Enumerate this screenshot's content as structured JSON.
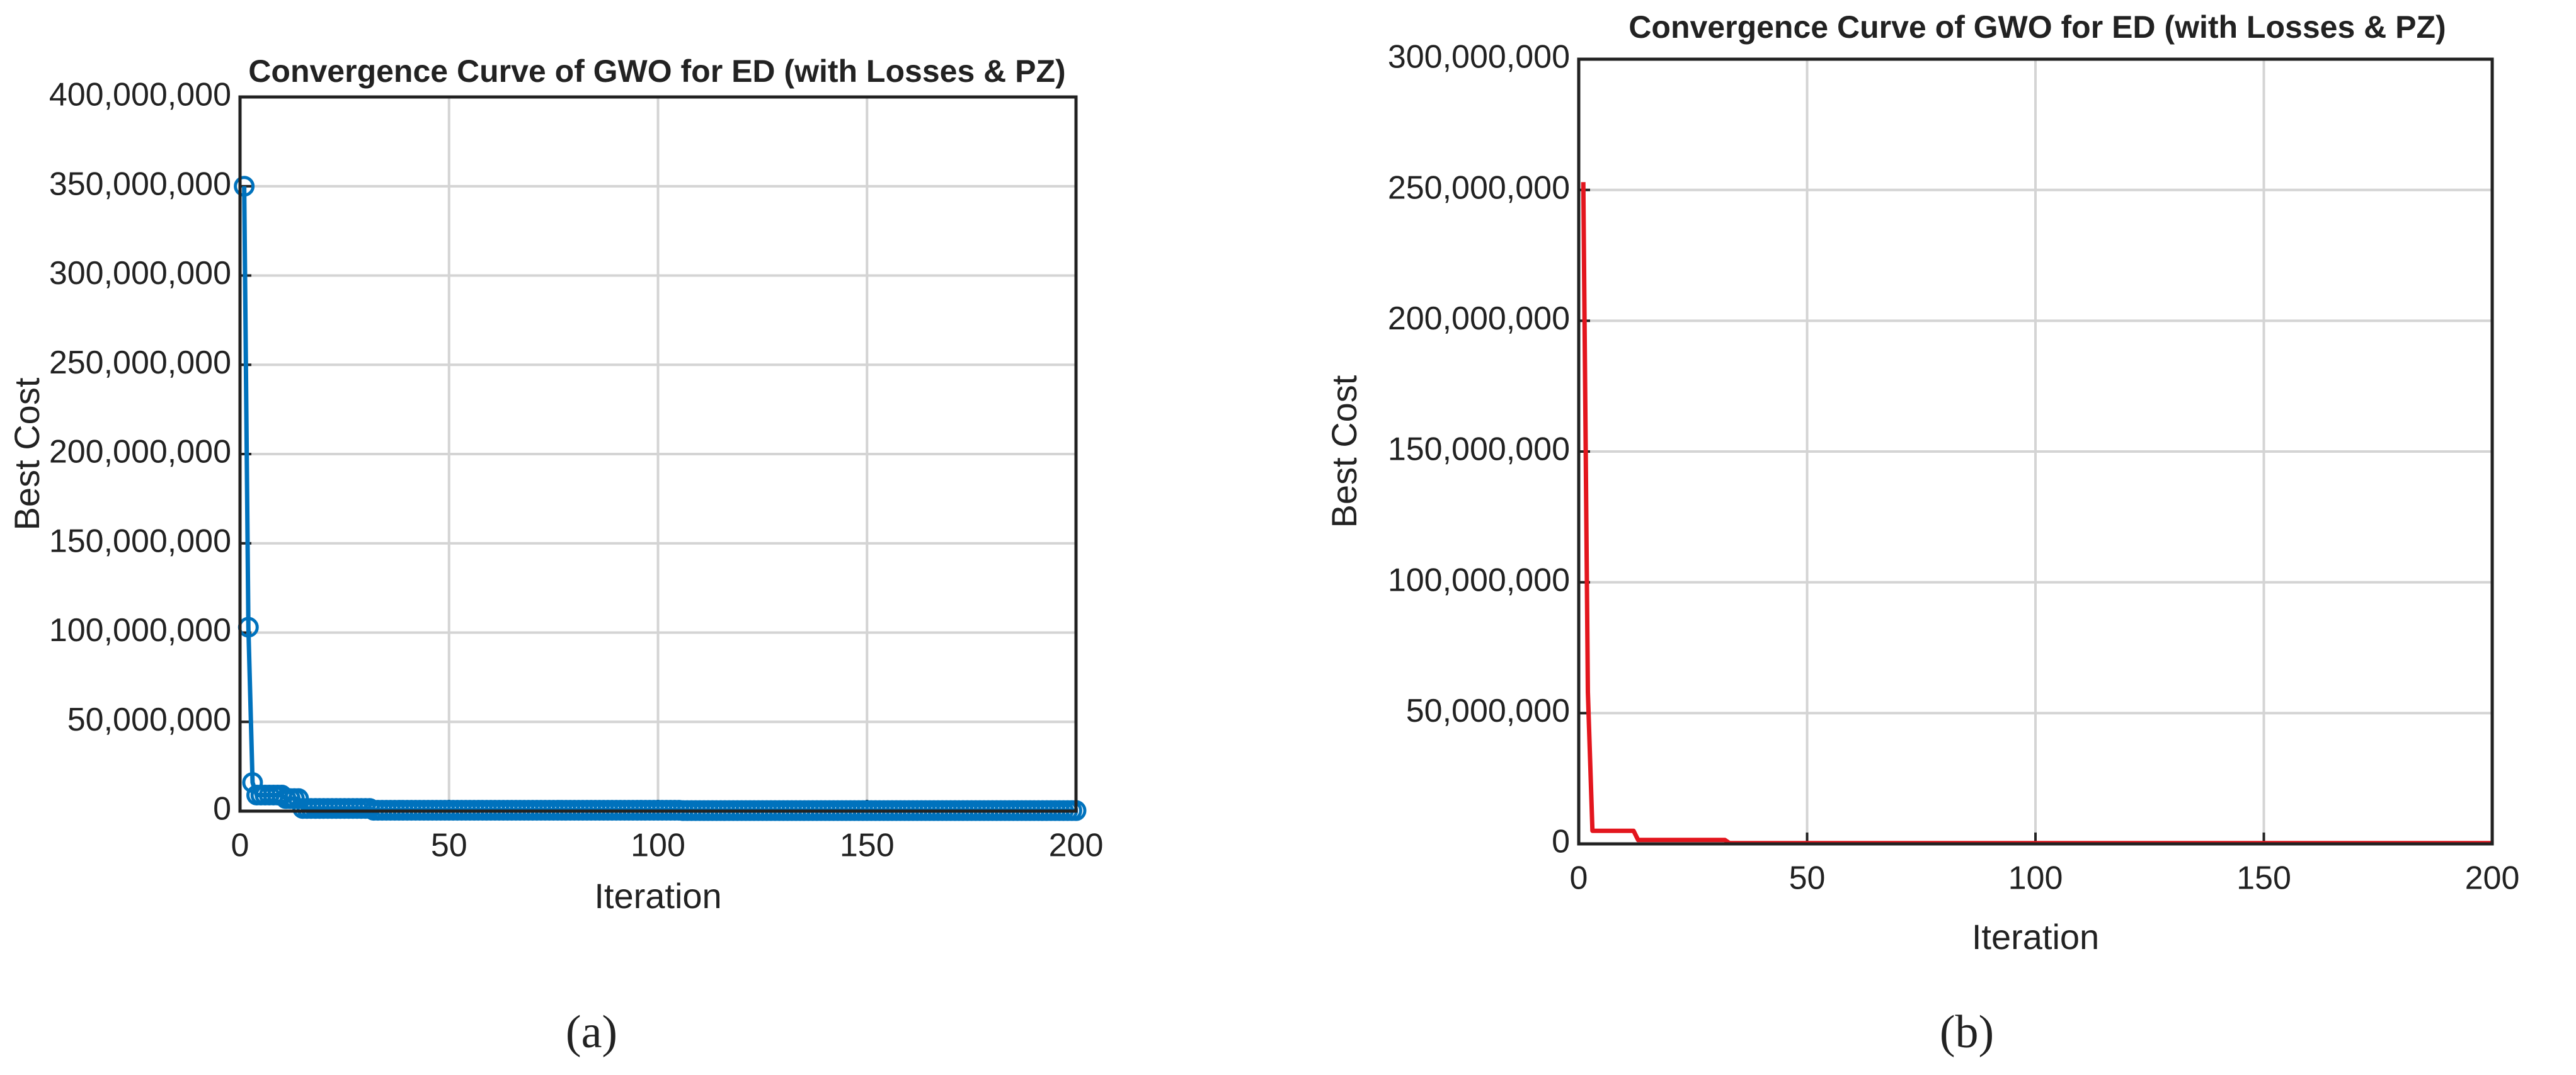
{
  "chart_data": [
    {
      "type": "line",
      "title": "Convergence Curve of GWO for ED (with Losses & PZ)",
      "x_label": "Iteration",
      "y_label": "Best Cost",
      "caption": "(a)",
      "xlim": [
        0,
        200
      ],
      "xticks": [
        0,
        50,
        100,
        150,
        200
      ],
      "ylim": [
        0,
        400000000
      ],
      "yticks": [
        0,
        {
          "value": 50000000,
          "label": "50,000,000"
        },
        {
          "value": 100000000,
          "label": "100,000,000"
        },
        {
          "value": 150000000,
          "label": "150,000,000"
        },
        {
          "value": 200000000,
          "label": "200,000,000"
        },
        {
          "value": 250000000,
          "label": "250,000,000"
        },
        {
          "value": 300000000,
          "label": "300,000,000"
        },
        {
          "value": 350000000,
          "label": "350,000,000"
        },
        {
          "value": 400000000,
          "label": "400,000,000"
        }
      ],
      "grid": true,
      "x": [
        1,
        2,
        3,
        4,
        5,
        6,
        7,
        8,
        9,
        10,
        11,
        12,
        13,
        14,
        15,
        16,
        17,
        18,
        19,
        20,
        21,
        22,
        23,
        24,
        25,
        26,
        27,
        28,
        29,
        30,
        31,
        32,
        33,
        34,
        35,
        36,
        37,
        38,
        39,
        40,
        41,
        42,
        43,
        44,
        45,
        46,
        47,
        48,
        49,
        50,
        51,
        52,
        53,
        54,
        55,
        56,
        57,
        58,
        59,
        60,
        61,
        62,
        63,
        64,
        65,
        66,
        67,
        68,
        69,
        70,
        71,
        72,
        73,
        74,
        75,
        76,
        77,
        78,
        79,
        80,
        81,
        82,
        83,
        84,
        85,
        86,
        87,
        88,
        89,
        90,
        91,
        92,
        93,
        94,
        95,
        96,
        97,
        98,
        99,
        100,
        101,
        102,
        103,
        104,
        105,
        106,
        107,
        108,
        109,
        110,
        111,
        112,
        113,
        114,
        115,
        116,
        117,
        118,
        119,
        120,
        121,
        122,
        123,
        124,
        125,
        126,
        127,
        128,
        129,
        130,
        131,
        132,
        133,
        134,
        135,
        136,
        137,
        138,
        139,
        140,
        141,
        142,
        143,
        144,
        145,
        146,
        147,
        148,
        149,
        150,
        151,
        152,
        153,
        154,
        155,
        156,
        157,
        158,
        159,
        160,
        161,
        162,
        163,
        164,
        165,
        166,
        167,
        168,
        169,
        170,
        171,
        172,
        173,
        174,
        175,
        176,
        177,
        178,
        179,
        180,
        181,
        182,
        183,
        184,
        185,
        186,
        187,
        188,
        189,
        190,
        191,
        192,
        193,
        194,
        195,
        196,
        197,
        198,
        199,
        200
      ],
      "series": [
        {
          "color": "#0072bd",
          "marker": "circle",
          "values": [
            350000000,
            103000000,
            16000000,
            9000000,
            9000000,
            9000000,
            9000000,
            9000000,
            9000000,
            9000000,
            7000000,
            7000000,
            7000000,
            7000000,
            1500000,
            1500000,
            1500000,
            1500000,
            1500000,
            1500000,
            1500000,
            1500000,
            1500000,
            1500000,
            1500000,
            1500000,
            1500000,
            1500000,
            1500000,
            1500000,
            1500000,
            500000,
            500000,
            500000,
            500000,
            500000,
            500000,
            500000,
            500000,
            500000,
            500000,
            500000,
            500000,
            500000,
            500000,
            500000,
            500000,
            500000,
            500000,
            500000,
            500000,
            500000,
            500000,
            500000,
            500000,
            500000,
            500000,
            500000,
            500000,
            500000,
            500000,
            500000,
            500000,
            500000,
            500000,
            500000,
            500000,
            500000,
            500000,
            500000,
            500000,
            500000,
            500000,
            500000,
            500000,
            500000,
            500000,
            500000,
            500000,
            500000,
            500000,
            500000,
            500000,
            500000,
            500000,
            500000,
            500000,
            500000,
            500000,
            500000,
            500000,
            500000,
            500000,
            500000,
            500000,
            500000,
            500000,
            500000,
            500000,
            500000,
            500000,
            500000,
            500000,
            500000,
            500000,
            300000,
            300000,
            300000,
            300000,
            300000,
            300000,
            300000,
            300000,
            300000,
            300000,
            300000,
            300000,
            300000,
            300000,
            300000,
            300000,
            300000,
            300000,
            300000,
            300000,
            300000,
            300000,
            300000,
            300000,
            300000,
            300000,
            300000,
            300000,
            300000,
            300000,
            300000,
            300000,
            300000,
            300000,
            300000,
            300000,
            300000,
            300000,
            300000,
            300000,
            300000,
            300000,
            300000,
            300000,
            300000,
            300000,
            300000,
            300000,
            300000,
            300000,
            300000,
            300000,
            300000,
            300000,
            300000,
            300000,
            300000,
            300000,
            300000,
            300000,
            300000,
            300000,
            300000,
            300000,
            300000,
            300000,
            300000,
            300000,
            300000,
            300000,
            300000,
            300000,
            300000,
            300000,
            300000,
            300000,
            300000,
            300000,
            300000,
            300000,
            300000,
            300000,
            300000,
            300000,
            300000,
            300000,
            300000,
            300000,
            300000,
            300000,
            300000,
            300000,
            300000,
            300000,
            300000
          ]
        }
      ]
    },
    {
      "type": "line",
      "title": "Convergence Curve of GWO for ED (with Losses & PZ)",
      "x_label": "Iteration",
      "y_label": "Best Cost",
      "caption": "(b)",
      "xlim": [
        0,
        200
      ],
      "xticks": [
        0,
        50,
        100,
        150,
        200
      ],
      "ylim": [
        0,
        300000000
      ],
      "yticks": [
        0,
        {
          "value": 50000000,
          "label": "50,000,000"
        },
        {
          "value": 100000000,
          "label": "100,000,000"
        },
        {
          "value": 150000000,
          "label": "150,000,000"
        },
        {
          "value": 200000000,
          "label": "200,000,000"
        },
        {
          "value": 250000000,
          "label": "250,000,000"
        },
        {
          "value": 300000000,
          "label": "300,000,000"
        }
      ],
      "grid": true,
      "x": [
        1,
        2,
        3,
        12,
        13,
        32,
        33,
        200
      ],
      "series": [
        {
          "color": "#e3161e",
          "values": [
            253000000,
            58000000,
            5000000,
            5000000,
            1500000,
            1500000,
            300000,
            300000
          ]
        }
      ]
    }
  ]
}
